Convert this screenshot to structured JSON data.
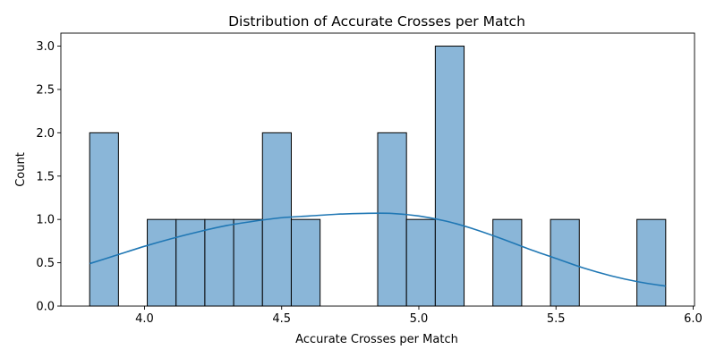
{
  "chart_data": {
    "type": "bar",
    "subtype": "histogram_with_kde",
    "title": "Distribution of Accurate Crosses per Match",
    "xlabel": "Accurate Crosses per Match",
    "ylabel": "Count",
    "xlim": [
      3.695,
      6.005
    ],
    "ylim": [
      0,
      3.15
    ],
    "x_ticks": [
      4.0,
      4.5,
      5.0,
      5.5,
      6.0
    ],
    "x_tick_labels": [
      "4.0",
      "4.5",
      "5.0",
      "5.5",
      "6.0"
    ],
    "y_ticks": [
      0.0,
      0.5,
      1.0,
      1.5,
      2.0,
      2.5,
      3.0
    ],
    "y_tick_labels": [
      "0.0",
      "0.5",
      "1.0",
      "1.5",
      "2.0",
      "2.5",
      "3.0"
    ],
    "grid": false,
    "legend": "none",
    "bar_color": "#8ab6d8",
    "bar_edge_color": "#000000",
    "kde_color": "#1f77b4",
    "bins": [
      {
        "start": 3.8,
        "end": 3.905,
        "count": 2
      },
      {
        "start": 3.905,
        "end": 4.01,
        "count": 0
      },
      {
        "start": 4.01,
        "end": 4.115,
        "count": 1
      },
      {
        "start": 4.115,
        "end": 4.22,
        "count": 1
      },
      {
        "start": 4.22,
        "end": 4.325,
        "count": 1
      },
      {
        "start": 4.325,
        "end": 4.43,
        "count": 1
      },
      {
        "start": 4.43,
        "end": 4.535,
        "count": 2
      },
      {
        "start": 4.535,
        "end": 4.64,
        "count": 1
      },
      {
        "start": 4.64,
        "end": 4.745,
        "count": 0
      },
      {
        "start": 4.745,
        "end": 4.85,
        "count": 0
      },
      {
        "start": 4.85,
        "end": 4.955,
        "count": 2
      },
      {
        "start": 4.955,
        "end": 5.06,
        "count": 1
      },
      {
        "start": 5.06,
        "end": 5.165,
        "count": 3
      },
      {
        "start": 5.165,
        "end": 5.27,
        "count": 0
      },
      {
        "start": 5.27,
        "end": 5.375,
        "count": 1
      },
      {
        "start": 5.375,
        "end": 5.48,
        "count": 0
      },
      {
        "start": 5.48,
        "end": 5.585,
        "count": 1
      },
      {
        "start": 5.585,
        "end": 5.69,
        "count": 0
      },
      {
        "start": 5.69,
        "end": 5.795,
        "count": 0
      },
      {
        "start": 5.795,
        "end": 5.9,
        "count": 1
      }
    ],
    "kde": {
      "x": [
        3.8,
        3.9,
        4.0,
        4.1,
        4.2,
        4.3,
        4.4,
        4.5,
        4.6,
        4.7,
        4.8,
        4.9,
        5.0,
        5.1,
        5.2,
        5.3,
        5.4,
        5.5,
        5.6,
        5.7,
        5.8,
        5.9
      ],
      "y": [
        0.49,
        0.59,
        0.69,
        0.78,
        0.86,
        0.93,
        0.98,
        1.02,
        1.04,
        1.06,
        1.07,
        1.07,
        1.04,
        0.98,
        0.89,
        0.78,
        0.66,
        0.55,
        0.44,
        0.35,
        0.28,
        0.23
      ]
    }
  }
}
